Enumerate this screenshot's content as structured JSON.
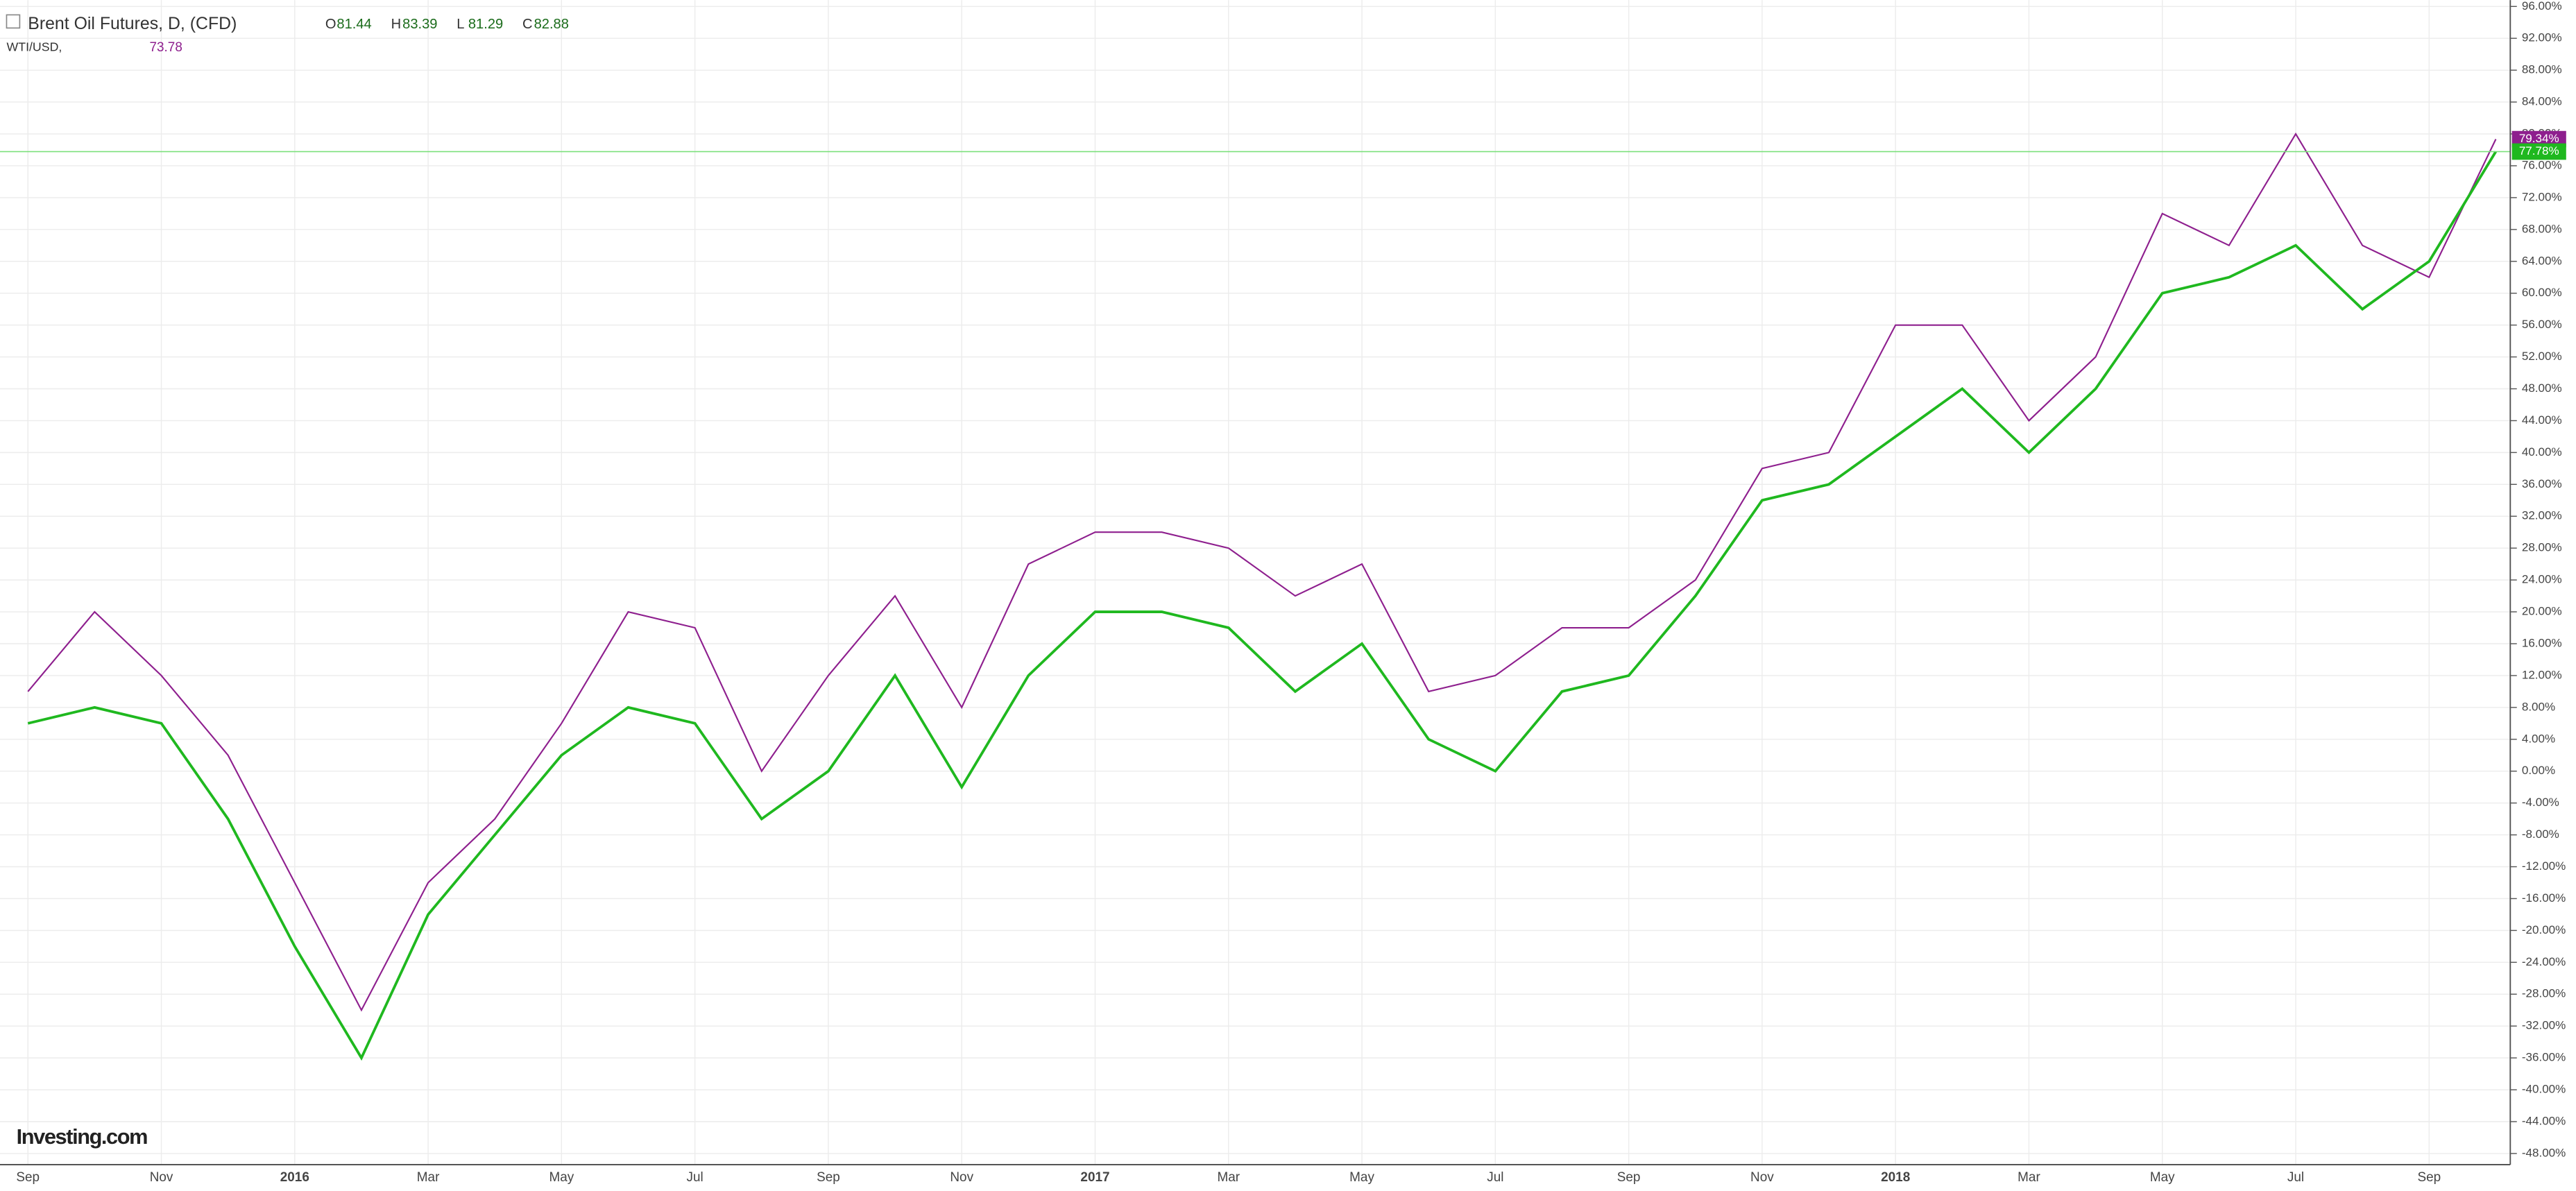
{
  "header": {
    "symbol": "Brent Oil Futures, D, (CFD)",
    "ohlc": [
      {
        "key": "O",
        "value": "81.44"
      },
      {
        "key": "H",
        "value": "83.39"
      },
      {
        "key": "L",
        "value": "81.29"
      },
      {
        "key": "C",
        "value": "82.88"
      }
    ]
  },
  "overlay": {
    "symbol": "WTI/USD,",
    "value": "73.78"
  },
  "logo": "Investing.com",
  "chart_data": {
    "type": "line",
    "categories": [
      "Sep",
      null,
      "Nov",
      null,
      "2016",
      null,
      "Mar",
      null,
      "May",
      null,
      "Jul",
      null,
      "Sep",
      null,
      "Nov",
      null,
      "2017",
      null,
      "Mar",
      null,
      "May",
      null,
      "Jul",
      null,
      "Sep",
      null,
      "Nov",
      null,
      "2018",
      null,
      "Mar",
      null,
      "May",
      null,
      "Jul",
      null,
      "Sep",
      null
    ],
    "series": [
      {
        "name": "Brent Oil Futures",
        "color": "#1fb81f",
        "values": [
          6,
          8,
          6,
          -6,
          -22,
          -36,
          -18,
          -8,
          2,
          8,
          6,
          -6,
          0,
          12,
          -2,
          12,
          20,
          20,
          18,
          10,
          16,
          4,
          0,
          10,
          12,
          22,
          34,
          36,
          42,
          48,
          40,
          48,
          60,
          62,
          66,
          58,
          64,
          77.78
        ],
        "value_labels": [
          null,
          null,
          null,
          null,
          null,
          null,
          null,
          null,
          null,
          null,
          null,
          null,
          null,
          null,
          null,
          null,
          null,
          null,
          null,
          null,
          null,
          null,
          null,
          null,
          null,
          null,
          null,
          null,
          null,
          null,
          null,
          null,
          null,
          null,
          null,
          null,
          null,
          "77.78%"
        ]
      },
      {
        "name": "WTI/USD",
        "color": "#8e1f8e",
        "values": [
          10,
          20,
          12,
          2,
          -14,
          -30,
          -14,
          -6,
          6,
          20,
          18,
          0,
          12,
          22,
          8,
          26,
          30,
          30,
          28,
          22,
          26,
          10,
          12,
          18,
          18,
          24,
          38,
          40,
          56,
          56,
          44,
          52,
          70,
          66,
          80,
          66,
          62,
          79.34
        ],
        "value_labels": [
          null,
          null,
          null,
          null,
          null,
          null,
          null,
          null,
          null,
          null,
          null,
          null,
          null,
          null,
          null,
          null,
          null,
          null,
          null,
          null,
          null,
          null,
          null,
          null,
          null,
          null,
          null,
          null,
          null,
          null,
          null,
          null,
          null,
          null,
          null,
          null,
          null,
          "79.34%"
        ]
      }
    ],
    "ylim": [
      -49.4,
      96.8
    ],
    "yticks": [
      {
        "value": 96,
        "label": "96.00%"
      },
      {
        "value": 92,
        "label": "92.00%"
      },
      {
        "value": 88,
        "label": "88.00%"
      },
      {
        "value": 84,
        "label": "84.00%"
      },
      {
        "value": 80,
        "label": "80.00%"
      },
      {
        "value": 76,
        "label": "76.00%"
      },
      {
        "value": 72,
        "label": "72.00%"
      },
      {
        "value": 68,
        "label": "68.00%"
      },
      {
        "value": 64,
        "label": "64.00%"
      },
      {
        "value": 60,
        "label": "60.00%"
      },
      {
        "value": 56,
        "label": "56.00%"
      },
      {
        "value": 52,
        "label": "52.00%"
      },
      {
        "value": 48,
        "label": "48.00%"
      },
      {
        "value": 44,
        "label": "44.00%"
      },
      {
        "value": 40,
        "label": "40.00%"
      },
      {
        "value": 36,
        "label": "36.00%"
      },
      {
        "value": 32,
        "label": "32.00%"
      },
      {
        "value": 28,
        "label": "28.00%"
      },
      {
        "value": 24,
        "label": "24.00%"
      },
      {
        "value": 20,
        "label": "20.00%"
      },
      {
        "value": 16,
        "label": "16.00%"
      },
      {
        "value": 12,
        "label": "12.00%"
      },
      {
        "value": 8,
        "label": "8.00%"
      },
      {
        "value": 4,
        "label": "4.00%"
      },
      {
        "value": 0,
        "label": "0.00%"
      },
      {
        "value": -4,
        "label": "-4.00%"
      },
      {
        "value": -8,
        "label": "-8.00%"
      },
      {
        "value": -12,
        "label": "-12.00%"
      },
      {
        "value": -16,
        "label": "-16.00%"
      },
      {
        "value": -20,
        "label": "-20.00%"
      },
      {
        "value": -24,
        "label": "-24.00%"
      },
      {
        "value": -28,
        "label": "-28.00%"
      },
      {
        "value": -32,
        "label": "-32.00%"
      },
      {
        "value": -36,
        "label": "-36.00%"
      },
      {
        "value": -40,
        "label": "-40.00%"
      },
      {
        "value": -44,
        "label": "-44.00%"
      },
      {
        "value": -48,
        "label": "-48.00%"
      }
    ],
    "grid": true
  }
}
